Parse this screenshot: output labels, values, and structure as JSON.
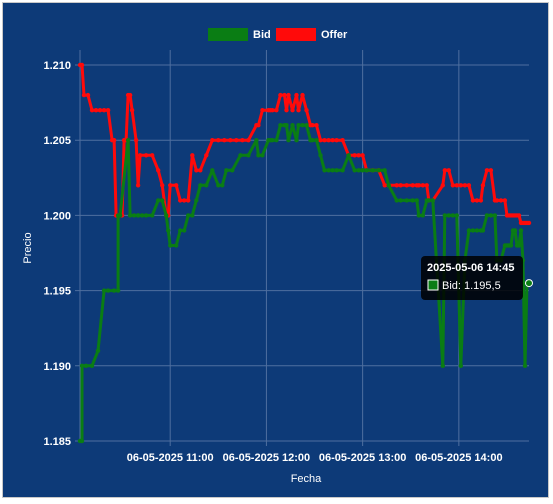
{
  "chart_data": {
    "type": "line",
    "title": "",
    "xlabel": "Fecha",
    "ylabel": "Precio",
    "ylim": [
      1.185,
      1.211
    ],
    "y_ticks": [
      "1.185",
      "1.190",
      "1.195",
      "1.200",
      "1.205",
      "1.210"
    ],
    "y_tick_values": [
      1.185,
      1.19,
      1.195,
      1.2,
      1.205,
      1.21
    ],
    "x_unit_label": "minutes since 10:30",
    "x_range": [
      0,
      224
    ],
    "x_ticks": [
      "06-05-2025 11:00",
      "06-05-2025 12:00",
      "06-05-2025 13:00",
      "06-05-2025 14:00"
    ],
    "x_tick_values": [
      45,
      93,
      141,
      189
    ],
    "grid": true,
    "legend": "top-center",
    "series": [
      {
        "name": "Bid",
        "color": "#0a7d14",
        "x": [
          0,
          1,
          1,
          3,
          6,
          9,
          9,
          12,
          14,
          17,
          19,
          19,
          20,
          24,
          25,
          27,
          29,
          29,
          31,
          33,
          36,
          39,
          41,
          43,
          44,
          45,
          48,
          50,
          52,
          54,
          56,
          58,
          60,
          63,
          66,
          69,
          71,
          73,
          76,
          80,
          84,
          88,
          89,
          91,
          94,
          95,
          96,
          98,
          100,
          102,
          103,
          104,
          106,
          108,
          109,
          111,
          113,
          115,
          116,
          118,
          120,
          122,
          124,
          126,
          128,
          131,
          134,
          137,
          139,
          141,
          143,
          146,
          149,
          152,
          154,
          158,
          160,
          163,
          166,
          168,
          169,
          171,
          173,
          174,
          176,
          181,
          182,
          184,
          186,
          188,
          190,
          192,
          194,
          196,
          198,
          200,
          201,
          203,
          205,
          207,
          208,
          210,
          212,
          213,
          214,
          215,
          216,
          217,
          218,
          219,
          220,
          221,
          222,
          223,
          224
        ],
        "values": [
          1.185,
          1.185,
          1.19,
          1.19,
          1.19,
          1.191,
          1.191,
          1.195,
          1.195,
          1.195,
          1.195,
          1.2,
          1.2,
          1.205,
          1.2,
          1.2,
          1.2,
          1.2,
          1.2,
          1.2,
          1.2,
          1.201,
          1.201,
          1.2,
          1.199,
          1.198,
          1.198,
          1.199,
          1.199,
          1.2,
          1.2,
          1.201,
          1.202,
          1.202,
          1.203,
          1.202,
          1.202,
          1.203,
          1.203,
          1.204,
          1.204,
          1.205,
          1.204,
          1.204,
          1.205,
          1.205,
          1.205,
          1.205,
          1.206,
          1.206,
          1.206,
          1.205,
          1.206,
          1.205,
          1.206,
          1.206,
          1.206,
          1.205,
          1.205,
          1.205,
          1.204,
          1.203,
          1.203,
          1.203,
          1.203,
          1.203,
          1.204,
          1.203,
          1.203,
          1.203,
          1.203,
          1.203,
          1.203,
          1.203,
          1.202,
          1.201,
          1.201,
          1.201,
          1.201,
          1.201,
          1.2,
          1.2,
          1.201,
          1.201,
          1.201,
          1.19,
          1.2,
          1.2,
          1.2,
          1.2,
          1.19,
          1.197,
          1.199,
          1.199,
          1.199,
          1.199,
          1.199,
          1.2,
          1.2,
          1.2,
          1.197,
          1.197,
          1.198,
          1.198,
          1.198,
          1.198,
          1.199,
          1.199,
          1.198,
          1.198,
          1.199,
          1.197,
          1.19,
          1.1955,
          1.1955
        ]
      },
      {
        "name": "Offer",
        "color": "#ff0a0a",
        "x": [
          0,
          1,
          2,
          4,
          6,
          8,
          10,
          12,
          14,
          16,
          17,
          18,
          19,
          20,
          21,
          22,
          23,
          24,
          25,
          26,
          28,
          29,
          30,
          33,
          36,
          39,
          41,
          43,
          44,
          45,
          48,
          50,
          52,
          54,
          56,
          58,
          60,
          63,
          66,
          69,
          72,
          75,
          78,
          81,
          84,
          88,
          89,
          91,
          94,
          95,
          96,
          98,
          100,
          102,
          103,
          104,
          106,
          108,
          109,
          111,
          113,
          115,
          116,
          118,
          120,
          122,
          124,
          126,
          128,
          131,
          134,
          137,
          139,
          141,
          143,
          146,
          149,
          152,
          154,
          158,
          160,
          163,
          166,
          168,
          169,
          171,
          173,
          174,
          176,
          181,
          182,
          184,
          186,
          188,
          190,
          192,
          194,
          196,
          198,
          200,
          201,
          203,
          205,
          207,
          208,
          210,
          212,
          213,
          214,
          215,
          216,
          217,
          218,
          219,
          220,
          221,
          222,
          223,
          224
        ],
        "values": [
          1.21,
          1.21,
          1.208,
          1.208,
          1.207,
          1.207,
          1.207,
          1.207,
          1.207,
          1.205,
          1.205,
          1.2,
          1.2,
          1.2,
          1.2,
          1.205,
          1.205,
          1.208,
          1.208,
          1.207,
          1.205,
          1.202,
          1.204,
          1.204,
          1.204,
          1.203,
          1.202,
          1.2,
          1.2,
          1.202,
          1.202,
          1.201,
          1.201,
          1.201,
          1.204,
          1.203,
          1.203,
          1.204,
          1.205,
          1.205,
          1.205,
          1.205,
          1.205,
          1.205,
          1.205,
          1.206,
          1.206,
          1.207,
          1.207,
          1.207,
          1.207,
          1.207,
          1.208,
          1.208,
          1.207,
          1.208,
          1.207,
          1.208,
          1.207,
          1.208,
          1.207,
          1.206,
          1.206,
          1.206,
          1.205,
          1.205,
          1.205,
          1.205,
          1.205,
          1.205,
          1.204,
          1.204,
          1.204,
          1.204,
          1.203,
          1.203,
          1.203,
          1.202,
          1.202,
          1.202,
          1.202,
          1.202,
          1.202,
          1.202,
          1.202,
          1.202,
          1.202,
          1.201,
          1.201,
          1.202,
          1.203,
          1.203,
          1.202,
          1.202,
          1.202,
          1.202,
          1.202,
          1.201,
          1.201,
          1.201,
          1.202,
          1.203,
          1.203,
          1.201,
          1.201,
          1.201,
          1.201,
          1.2,
          1.2,
          1.2,
          1.2,
          1.2,
          1.2,
          1.2,
          1.1995,
          1.1995,
          1.1995,
          1.1995,
          1.1995
        ]
      }
    ],
    "tooltip": {
      "title": "2025-05-06 14:45",
      "series_label": "Bid: 1.195,5",
      "x": 224,
      "y": 1.1955,
      "swatch_color": "#0a7d14"
    }
  },
  "colors": {
    "background": "#0d3a78",
    "grid": "#4f6f9f",
    "text": "#ffffff"
  }
}
